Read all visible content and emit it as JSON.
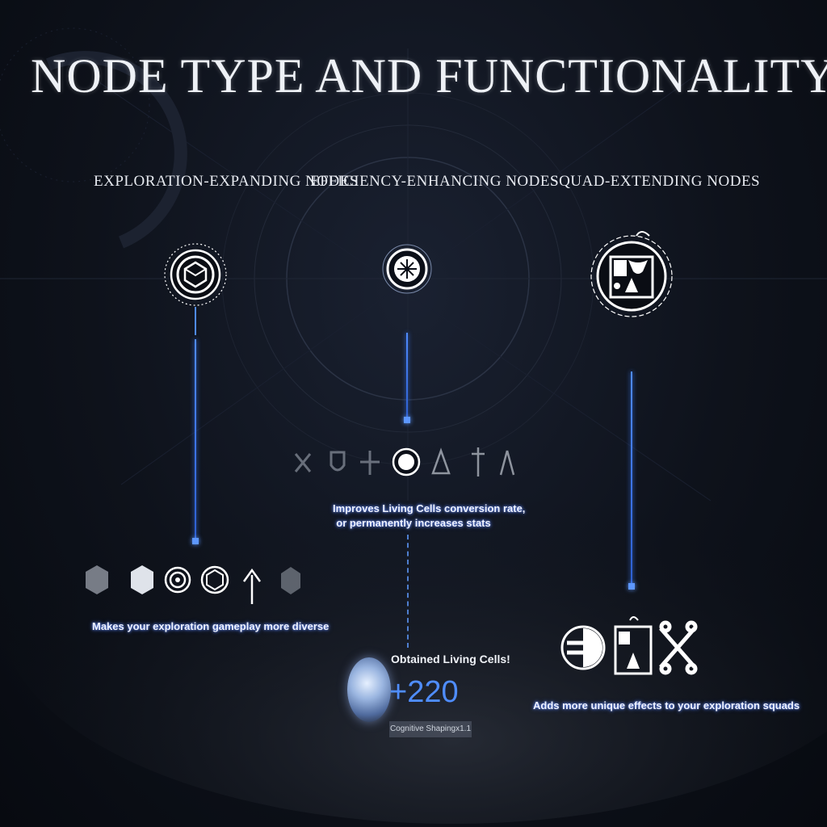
{
  "title": "NODE TYPE AND FUNCTIONALITY",
  "columns": {
    "exploration": {
      "heading": "EXPLORATION-EXPANDING NODES",
      "caption": "Makes your exploration gameplay more diverse"
    },
    "efficiency": {
      "heading": "EFFICIENCY-ENHANCING NODES",
      "caption_line1": "Improves Living Cells conversion rate,",
      "caption_line2": "or permanently increases stats"
    },
    "squad": {
      "heading": "SQUAD-EXTENDING NODES",
      "caption": "Adds more unique effects to your exploration squads"
    }
  },
  "reward": {
    "label": "Obtained Living Cells!",
    "value": "+220",
    "tag": "Cognitive Shapingx1.1"
  },
  "icons": {
    "exploration_main": "d20-dice-icon",
    "efficiency_main": "compass-star-icon",
    "squad_main": "chalice-banner-icon"
  },
  "colors": {
    "accent_blue": "#4f8dff",
    "background": "#0e121b"
  }
}
